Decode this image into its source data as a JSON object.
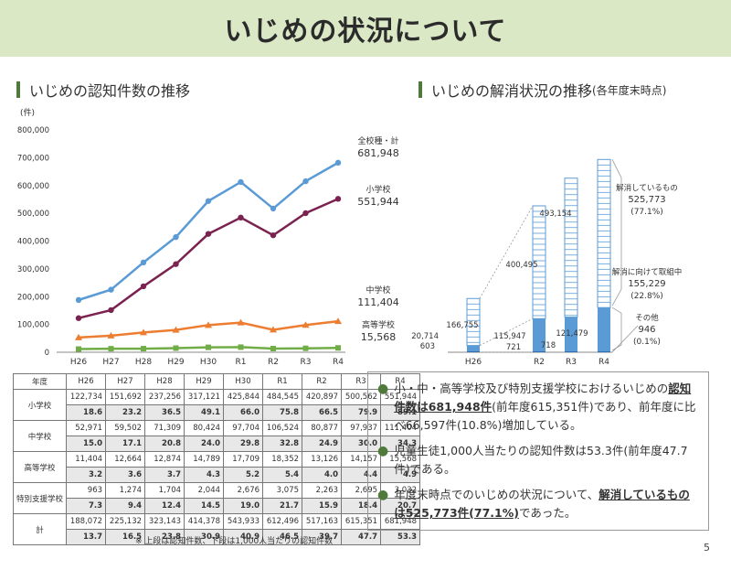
{
  "page": {
    "title": "いじめの状況について",
    "page_number": "5"
  },
  "left_title": "いじめの認知件数の推移",
  "right_title": {
    "main": "いじめの解消状況の推移",
    "sub": "(各年度末時点)"
  },
  "chart_data": [
    {
      "type": "line",
      "y_unit": "(件)",
      "ylim": [
        0,
        800000
      ],
      "yticks": [
        "0",
        "100,000",
        "200,000",
        "300,000",
        "400,000",
        "500,000",
        "600,000",
        "700,000",
        "800,000"
      ],
      "x": [
        "H26",
        "H27",
        "H28",
        "H29",
        "H30",
        "R1",
        "R2",
        "R3",
        "R4"
      ],
      "series": [
        {
          "name": "全校種・計",
          "value_label": "681,948",
          "color": "#5b9bd5",
          "values": [
            188072,
            225132,
            323143,
            414378,
            543933,
            612496,
            517163,
            615351,
            681948
          ]
        },
        {
          "name": "小学校",
          "value_label": "551,944",
          "color": "#7b2350",
          "values": [
            122734,
            151692,
            237256,
            317121,
            425844,
            484545,
            420897,
            500562,
            551944
          ]
        },
        {
          "name": "中学校",
          "value_label": "111,404",
          "color": "#ed7d31",
          "values": [
            52971,
            59502,
            71309,
            80424,
            97704,
            106524,
            80877,
            97937,
            111404
          ]
        },
        {
          "name": "高等学校",
          "value_label": "15,568",
          "color": "#70ad47",
          "values": [
            11404,
            12664,
            12874,
            14789,
            17709,
            18352,
            13126,
            14157,
            15568
          ]
        }
      ]
    },
    {
      "type": "bar",
      "stacked": true,
      "categories": [
        "H26",
        "R2",
        "R3",
        "R4"
      ],
      "series": [
        {
          "name": "解消しているもの",
          "values": [
            166755,
            400495,
            493154,
            525773
          ]
        },
        {
          "name": "解消に向けて取組中",
          "values": [
            20714,
            115947,
            121479,
            155229
          ]
        },
        {
          "name": "その他",
          "values": [
            603,
            721,
            718,
            946
          ]
        }
      ],
      "labels": [
        {
          "cat": "H26",
          "resolved": "166,755",
          "inprogress": "20,714",
          "other": "603"
        },
        {
          "cat": "R2",
          "resolved": "400,495",
          "inprogress": "115,947",
          "other": "721"
        },
        {
          "cat": "R3",
          "resolved": "493,154",
          "inprogress": "121,479",
          "other": "718"
        },
        {
          "cat": "R4",
          "resolved": "",
          "inprogress": "",
          "other": ""
        }
      ],
      "annotations": {
        "resolved": {
          "name": "解消しているもの",
          "value": "525,773",
          "pct": "(77.1%)"
        },
        "inprogress": {
          "name": "解消に向けて取組中",
          "value": "155,229",
          "pct": "(22.8%)"
        },
        "other": {
          "name": "その他",
          "value": "946",
          "pct": "(0.1%)"
        }
      },
      "colors": {
        "resolved": "#ffffff",
        "inprogress": "#5b9bd5",
        "border": "#5b9bd5"
      }
    }
  ],
  "table": {
    "header": [
      "年度",
      "H26",
      "H27",
      "H28",
      "H29",
      "H30",
      "R1",
      "R2",
      "R3",
      "R4"
    ],
    "rows": [
      {
        "label": "小学校",
        "upper": [
          "122,734",
          "151,692",
          "237,256",
          "317,121",
          "425,844",
          "484,545",
          "420,897",
          "500,562",
          "551,944"
        ],
        "lower": [
          "18.6",
          "23.2",
          "36.5",
          "49.1",
          "66.0",
          "75.8",
          "66.5",
          "79.9",
          "89.1"
        ]
      },
      {
        "label": "中学校",
        "upper": [
          "52,971",
          "59,502",
          "71,309",
          "80,424",
          "97,704",
          "106,524",
          "80,877",
          "97,937",
          "111,404"
        ],
        "lower": [
          "15.0",
          "17.1",
          "20.8",
          "24.0",
          "29.8",
          "32.8",
          "24.9",
          "30.0",
          "34.3"
        ]
      },
      {
        "label": "高等学校",
        "upper": [
          "11,404",
          "12,664",
          "12,874",
          "14,789",
          "17,709",
          "18,352",
          "13,126",
          "14,157",
          "15,568"
        ],
        "lower": [
          "3.2",
          "3.6",
          "3.7",
          "4.3",
          "5.2",
          "5.4",
          "4.0",
          "4.4",
          "4.9"
        ]
      },
      {
        "label": "特別支援学校",
        "upper": [
          "963",
          "1,274",
          "1,704",
          "2,044",
          "2,676",
          "3,075",
          "2,263",
          "2,695",
          "3,032"
        ],
        "lower": [
          "7.3",
          "9.4",
          "12.4",
          "14.5",
          "19.0",
          "21.7",
          "15.9",
          "18.4",
          "20.7"
        ]
      },
      {
        "label": "計",
        "upper": [
          "188,072",
          "225,132",
          "323,143",
          "414,378",
          "543,933",
          "612,496",
          "517,163",
          "615,351",
          "681,948"
        ],
        "lower": [
          "13.7",
          "16.5",
          "23.8",
          "30.9",
          "40.9",
          "46.5",
          "39.7",
          "47.7",
          "53.3"
        ]
      }
    ],
    "footnote": "※ 上段は認知件数、下段は1,000人当たりの認知件数"
  },
  "summary": {
    "item1": {
      "a": "小・中・高等学校及び特別支援学校におけるいじめの",
      "b_u": "認知件数は681,948件",
      "c": "(前年度615,351件)であり、前年度に比べ66,597件(10.8%)増加している。"
    },
    "item2": {
      "a": "児童生徒1,000人当たりの認知件数は53.3件(前年度47.7件)である。"
    },
    "item3": {
      "a": "年度末時点でのいじめの状況について、",
      "b_u": "解消しているものは525,773件(77.1%)",
      "c": "であった。"
    }
  },
  "colors": {
    "banner": "#dbe8c6",
    "accent": "#4f7a3b"
  }
}
